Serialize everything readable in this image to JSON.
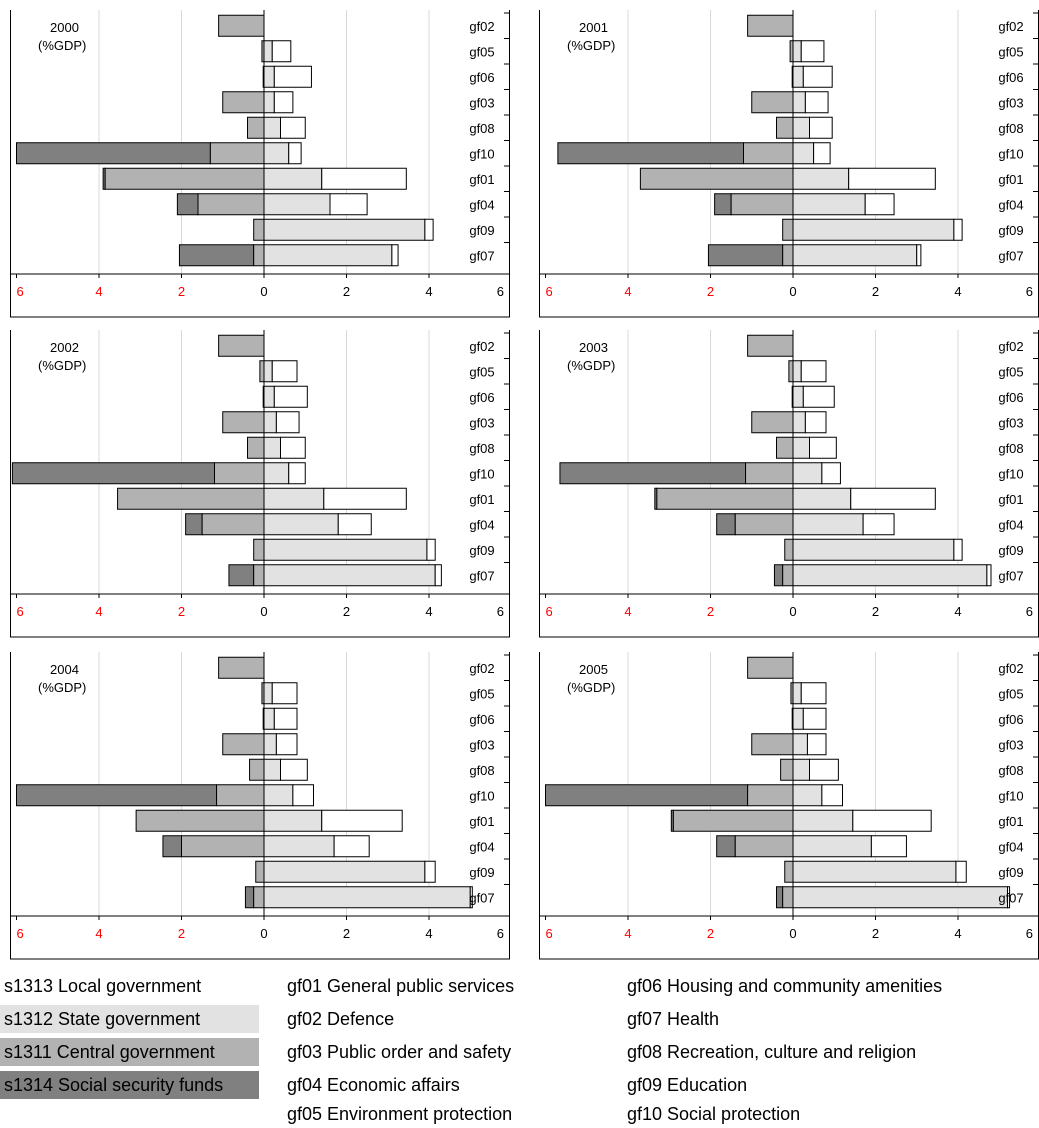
{
  "chart_data": [
    {
      "type": "bar",
      "stacked": true,
      "orientation": "horizontal-diverging",
      "year": "2000",
      "unit": "(%GDP)",
      "categories": [
        "gf02",
        "gf05",
        "gf06",
        "gf03",
        "gf08",
        "gf10",
        "gf01",
        "gf04",
        "gf09",
        "gf07"
      ],
      "left_series": [
        {
          "name": "s1311 Central government",
          "values": [
            1.1,
            0.05,
            0.02,
            1.0,
            0.4,
            1.3,
            3.85,
            1.6,
            0.25,
            0.25
          ]
        },
        {
          "name": "s1314 Social security funds",
          "values": [
            0,
            0,
            0,
            0,
            0,
            4.7,
            0.05,
            0.5,
            0,
            1.8
          ]
        }
      ],
      "right_series": [
        {
          "name": "s1312 State government",
          "values": [
            0,
            0.2,
            0.25,
            0.25,
            0.4,
            0.6,
            1.4,
            1.6,
            3.9,
            3.1
          ]
        },
        {
          "name": "s1313 Local government",
          "values": [
            0,
            0.45,
            0.9,
            0.45,
            0.6,
            0.3,
            2.05,
            0.9,
            0.2,
            0.15
          ]
        }
      ],
      "xticks_left": [
        "6",
        "4",
        "2"
      ],
      "xticks_right": [
        "0",
        "2",
        "4",
        "6"
      ],
      "xlim": [
        -6,
        6
      ]
    },
    {
      "type": "bar",
      "stacked": true,
      "orientation": "horizontal-diverging",
      "year": "2001",
      "unit": "(%GDP)",
      "categories": [
        "gf02",
        "gf05",
        "gf06",
        "gf03",
        "gf08",
        "gf10",
        "gf01",
        "gf04",
        "gf09",
        "gf07"
      ],
      "left_series": [
        {
          "name": "s1311 Central government",
          "values": [
            1.1,
            0.07,
            0.02,
            1.0,
            0.4,
            1.2,
            3.7,
            1.5,
            0.25,
            0.25
          ]
        },
        {
          "name": "s1314 Social security funds",
          "values": [
            0,
            0,
            0,
            0,
            0,
            4.5,
            0,
            0.4,
            0,
            1.8
          ]
        }
      ],
      "right_series": [
        {
          "name": "s1312 State government",
          "values": [
            0,
            0.2,
            0.25,
            0.3,
            0.4,
            0.5,
            1.35,
            1.75,
            3.9,
            3.0
          ]
        },
        {
          "name": "s1313 Local government",
          "values": [
            0,
            0.55,
            0.7,
            0.55,
            0.55,
            0.4,
            2.1,
            0.7,
            0.2,
            0.1
          ]
        }
      ],
      "xticks_left": [
        "6",
        "4",
        "2"
      ],
      "xticks_right": [
        "0",
        "2",
        "4",
        "6"
      ],
      "xlim": [
        -6,
        6
      ]
    },
    {
      "type": "bar",
      "stacked": true,
      "orientation": "horizontal-diverging",
      "year": "2002",
      "unit": "(%GDP)",
      "categories": [
        "gf02",
        "gf05",
        "gf06",
        "gf03",
        "gf08",
        "gf10",
        "gf01",
        "gf04",
        "gf09",
        "gf07"
      ],
      "left_series": [
        {
          "name": "s1311 Central government",
          "values": [
            1.1,
            0.1,
            0.02,
            1.0,
            0.4,
            1.2,
            3.55,
            1.5,
            0.25,
            0.25
          ]
        },
        {
          "name": "s1314 Social security funds",
          "values": [
            0,
            0,
            0,
            0,
            0,
            4.9,
            0,
            0.4,
            0,
            0.6
          ]
        }
      ],
      "right_series": [
        {
          "name": "s1312 State government",
          "values": [
            0,
            0.2,
            0.25,
            0.3,
            0.4,
            0.6,
            1.45,
            1.8,
            3.95,
            4.15
          ]
        },
        {
          "name": "s1313 Local government",
          "values": [
            0,
            0.6,
            0.8,
            0.55,
            0.6,
            0.4,
            2.0,
            0.8,
            0.2,
            0.15
          ]
        }
      ],
      "xticks_left": [
        "6",
        "4",
        "2"
      ],
      "xticks_right": [
        "0",
        "2",
        "4",
        "6"
      ],
      "xlim": [
        -6,
        6
      ]
    },
    {
      "type": "bar",
      "stacked": true,
      "orientation": "horizontal-diverging",
      "year": "2003",
      "unit": "(%GDP)",
      "categories": [
        "gf02",
        "gf05",
        "gf06",
        "gf03",
        "gf08",
        "gf10",
        "gf01",
        "gf04",
        "gf09",
        "gf07"
      ],
      "left_series": [
        {
          "name": "s1311 Central government",
          "values": [
            1.1,
            0.1,
            0.02,
            1.0,
            0.4,
            1.15,
            3.3,
            1.4,
            0.2,
            0.25
          ]
        },
        {
          "name": "s1314 Social security funds",
          "values": [
            0,
            0,
            0,
            0,
            0,
            4.5,
            0.05,
            0.45,
            0,
            0.2
          ]
        }
      ],
      "right_series": [
        {
          "name": "s1312 State government",
          "values": [
            0,
            0.2,
            0.25,
            0.3,
            0.4,
            0.7,
            1.4,
            1.7,
            3.9,
            4.7
          ]
        },
        {
          "name": "s1313 Local government",
          "values": [
            0,
            0.6,
            0.75,
            0.5,
            0.65,
            0.45,
            2.05,
            0.75,
            0.2,
            0.1
          ]
        }
      ],
      "xticks_left": [
        "6",
        "4",
        "2"
      ],
      "xticks_right": [
        "0",
        "2",
        "4",
        "6"
      ],
      "xlim": [
        -6,
        6
      ]
    },
    {
      "type": "bar",
      "stacked": true,
      "orientation": "horizontal-diverging",
      "year": "2004",
      "unit": "(%GDP)",
      "categories": [
        "gf02",
        "gf05",
        "gf06",
        "gf03",
        "gf08",
        "gf10",
        "gf01",
        "gf04",
        "gf09",
        "gf07"
      ],
      "left_series": [
        {
          "name": "s1311 Central government",
          "values": [
            1.1,
            0.05,
            0.02,
            1.0,
            0.35,
            1.15,
            3.1,
            2.0,
            0.2,
            0.25
          ]
        },
        {
          "name": "s1314 Social security funds",
          "values": [
            0,
            0,
            0,
            0,
            0,
            4.85,
            0,
            0.45,
            0,
            0.2
          ]
        }
      ],
      "right_series": [
        {
          "name": "s1312 State government",
          "values": [
            0,
            0.2,
            0.25,
            0.3,
            0.4,
            0.7,
            1.4,
            1.7,
            3.9,
            5.0
          ]
        },
        {
          "name": "s1313 Local government",
          "values": [
            0,
            0.6,
            0.55,
            0.5,
            0.65,
            0.5,
            1.95,
            0.85,
            0.25,
            0.05
          ]
        }
      ],
      "xticks_left": [
        "6",
        "4",
        "2"
      ],
      "xticks_right": [
        "0",
        "2",
        "4",
        "6"
      ],
      "xlim": [
        -6,
        6
      ]
    },
    {
      "type": "bar",
      "stacked": true,
      "orientation": "horizontal-diverging",
      "year": "2005",
      "unit": "(%GDP)",
      "categories": [
        "gf02",
        "gf05",
        "gf06",
        "gf03",
        "gf08",
        "gf10",
        "gf01",
        "gf04",
        "gf09",
        "gf07"
      ],
      "left_series": [
        {
          "name": "s1311 Central government",
          "values": [
            1.1,
            0.05,
            0.02,
            1.0,
            0.3,
            1.1,
            2.9,
            1.4,
            0.2,
            0.25
          ]
        },
        {
          "name": "s1314 Social security funds",
          "values": [
            0,
            0,
            0,
            0,
            0,
            4.9,
            0.05,
            0.45,
            0,
            0.15
          ]
        }
      ],
      "right_series": [
        {
          "name": "s1312 State government",
          "values": [
            0,
            0.2,
            0.25,
            0.35,
            0.4,
            0.7,
            1.45,
            1.9,
            3.95,
            5.2
          ]
        },
        {
          "name": "s1313 Local government",
          "values": [
            0,
            0.6,
            0.55,
            0.45,
            0.7,
            0.5,
            1.9,
            0.85,
            0.25,
            0.05
          ]
        }
      ],
      "xticks_left": [
        "6",
        "4",
        "2"
      ],
      "xticks_right": [
        "0",
        "2",
        "4",
        "6"
      ],
      "xlim": [
        -6,
        6
      ]
    }
  ],
  "colors": {
    "s1313": "#ffffff",
    "s1312": "#e2e2e2",
    "s1311": "#b2b2b2",
    "s1314": "#808080",
    "left_tick_labels": "#ff0000",
    "right_tick_labels": "#000000",
    "gridline": "#d9d9d9"
  },
  "legend": {
    "sectors": [
      {
        "code": "s1313",
        "label": "s1313 Local government"
      },
      {
        "code": "s1312",
        "label": "s1312 State government"
      },
      {
        "code": "s1311",
        "label": "s1311 Central government"
      },
      {
        "code": "s1314",
        "label": "s1314 Social security funds"
      }
    ],
    "functions_col1": [
      "gf01 General public services",
      "gf02 Defence",
      "gf03 Public order and safety",
      "gf04 Economic affairs",
      "gf05 Environment protection"
    ],
    "functions_col2": [
      "gf06 Housing and community amenities",
      "gf07 Health",
      "gf08 Recreation, culture and religion",
      "gf09 Education",
      "gf10 Social protection"
    ]
  }
}
